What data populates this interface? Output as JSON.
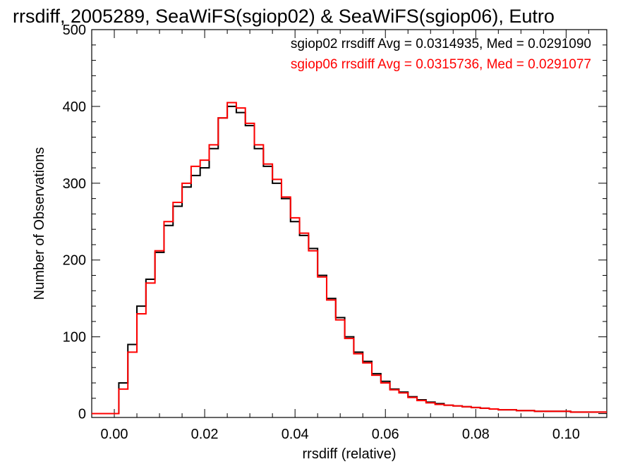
{
  "chart_data": {
    "type": "step",
    "title": "rrsdiff, 2005289, SeaWiFS(sgiop02) & SeaWiFS(sgiop06), Eutro",
    "xlabel": "rrsdiff (relative)",
    "ylabel": "Number of Observations",
    "xlim": [
      -0.005,
      0.109
    ],
    "ylim": [
      -5,
      500
    ],
    "xticks": [
      0.0,
      0.02,
      0.04,
      0.06,
      0.08,
      0.1
    ],
    "xtick_labels": [
      "0.00",
      "0.02",
      "0.04",
      "0.06",
      "0.08",
      "0.10"
    ],
    "yticks": [
      0,
      100,
      200,
      300,
      400,
      500
    ],
    "ytick_labels": [
      "0",
      "100",
      "200",
      "300",
      "400",
      "500"
    ],
    "grid": false,
    "legend_placement": "top-right",
    "series": [
      {
        "name": "sgiop02",
        "label": "sgiop02 rrsdiff Avg = 0.0314935, Med = 0.0291090",
        "color": "#000000",
        "x": [
          0.0,
          0.002,
          0.004,
          0.006,
          0.008,
          0.01,
          0.012,
          0.014,
          0.016,
          0.018,
          0.02,
          0.022,
          0.024,
          0.026,
          0.028,
          0.03,
          0.032,
          0.034,
          0.036,
          0.038,
          0.04,
          0.042,
          0.044,
          0.046,
          0.048,
          0.05,
          0.052,
          0.054,
          0.056,
          0.058,
          0.06,
          0.062,
          0.064,
          0.066,
          0.068,
          0.07,
          0.072,
          0.074,
          0.076,
          0.078,
          0.08,
          0.082,
          0.084,
          0.086,
          0.088,
          0.09,
          0.092,
          0.094,
          0.096,
          0.098,
          0.1,
          0.102,
          0.104,
          0.106,
          0.108
        ],
        "y": [
          0,
          40,
          90,
          140,
          175,
          210,
          245,
          270,
          295,
          310,
          320,
          345,
          385,
          400,
          392,
          375,
          345,
          322,
          300,
          280,
          250,
          232,
          215,
          180,
          150,
          125,
          100,
          80,
          68,
          52,
          42,
          32,
          28,
          22,
          18,
          15,
          13,
          11,
          10,
          9,
          8,
          7,
          6,
          5,
          5,
          4,
          4,
          3,
          3,
          3,
          3,
          2,
          2,
          2,
          2
        ]
      },
      {
        "name": "sgiop06",
        "label": "sgiop06 rrsdiff Avg = 0.0315736, Med = 0.0291077",
        "color": "#ff0000",
        "x": [
          0.0,
          0.002,
          0.004,
          0.006,
          0.008,
          0.01,
          0.012,
          0.014,
          0.016,
          0.018,
          0.02,
          0.022,
          0.024,
          0.026,
          0.028,
          0.03,
          0.032,
          0.034,
          0.036,
          0.038,
          0.04,
          0.042,
          0.044,
          0.046,
          0.048,
          0.05,
          0.052,
          0.054,
          0.056,
          0.058,
          0.06,
          0.062,
          0.064,
          0.066,
          0.068,
          0.07,
          0.072,
          0.074,
          0.076,
          0.078,
          0.08,
          0.082,
          0.084,
          0.086,
          0.088,
          0.09,
          0.092,
          0.094,
          0.096,
          0.098,
          0.1,
          0.102,
          0.104,
          0.106,
          0.108
        ],
        "y": [
          0,
          32,
          80,
          130,
          170,
          212,
          250,
          275,
          300,
          322,
          330,
          350,
          385,
          405,
          398,
          378,
          350,
          325,
          305,
          282,
          255,
          235,
          212,
          178,
          148,
          122,
          98,
          78,
          66,
          50,
          40,
          31,
          27,
          21,
          17,
          14,
          12,
          11,
          10,
          9,
          8,
          7,
          6,
          5,
          5,
          4,
          4,
          3,
          3,
          3,
          3,
          2,
          2,
          2,
          2
        ]
      }
    ]
  }
}
